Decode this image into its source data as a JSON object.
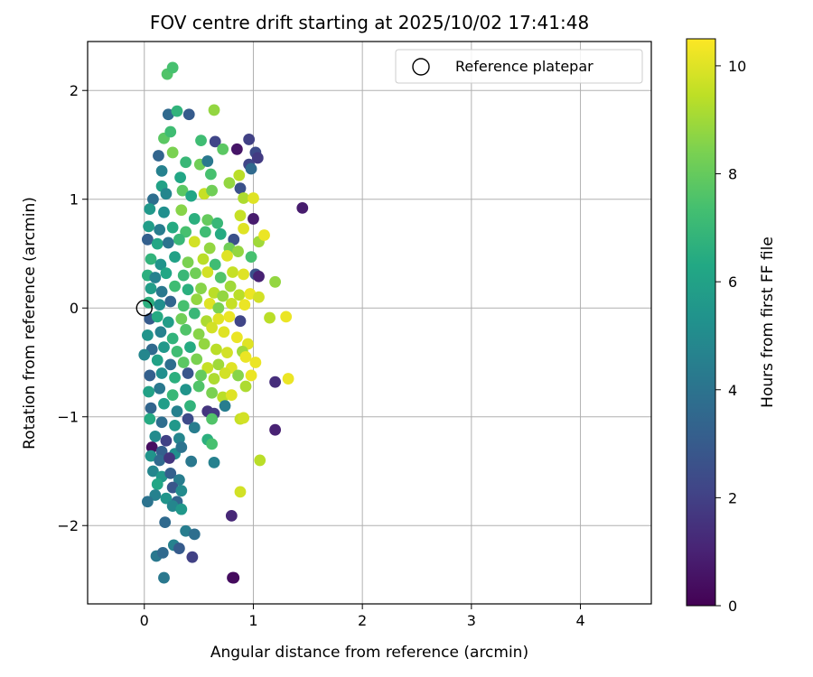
{
  "chart_data": {
    "type": "scatter",
    "title": "FOV centre drift starting at 2025/10/02 17:41:48",
    "xlabel": "Angular distance from reference (arcmin)",
    "ylabel": "Rotation from reference (arcmin)",
    "xlim": [
      -0.52,
      4.65
    ],
    "ylim": [
      -2.72,
      2.45
    ],
    "x_ticks": [
      0,
      1,
      2,
      3,
      4
    ],
    "y_ticks": [
      -2,
      -1,
      0,
      1,
      2
    ],
    "grid": true,
    "legend": {
      "position": "top-right",
      "label": "Reference platepar"
    },
    "reference_point": {
      "x": 0.0,
      "y": 0.0
    },
    "colorbar": {
      "label": "Hours from first FF file",
      "min": 0,
      "max": 10.5,
      "ticks": [
        0,
        2,
        4,
        6,
        8,
        10
      ],
      "colormap": "viridis"
    },
    "points": [
      {
        "x": 0.21,
        "y": 2.15,
        "h": 7.6
      },
      {
        "x": 0.26,
        "y": 2.21,
        "h": 7.4
      },
      {
        "x": 0.22,
        "y": 1.78,
        "h": 3.6
      },
      {
        "x": 0.3,
        "y": 1.81,
        "h": 6.8
      },
      {
        "x": 0.41,
        "y": 1.78,
        "h": 3.0
      },
      {
        "x": 0.64,
        "y": 1.82,
        "h": 8.8
      },
      {
        "x": 0.18,
        "y": 1.56,
        "h": 7.8
      },
      {
        "x": 0.24,
        "y": 1.62,
        "h": 7.2
      },
      {
        "x": 0.52,
        "y": 1.54,
        "h": 7.2
      },
      {
        "x": 0.65,
        "y": 1.53,
        "h": 2.2
      },
      {
        "x": 0.85,
        "y": 1.46,
        "h": 0.6
      },
      {
        "x": 0.96,
        "y": 1.55,
        "h": 2.0
      },
      {
        "x": 1.02,
        "y": 1.43,
        "h": 2.4
      },
      {
        "x": 1.04,
        "y": 1.38,
        "h": 1.8
      },
      {
        "x": 0.72,
        "y": 1.46,
        "h": 7.8
      },
      {
        "x": 0.13,
        "y": 1.4,
        "h": 3.4
      },
      {
        "x": 0.26,
        "y": 1.43,
        "h": 8.4
      },
      {
        "x": 0.38,
        "y": 1.34,
        "h": 7.0
      },
      {
        "x": 0.51,
        "y": 1.32,
        "h": 8.2
      },
      {
        "x": 0.58,
        "y": 1.35,
        "h": 4.2
      },
      {
        "x": 0.96,
        "y": 1.32,
        "h": 2.2
      },
      {
        "x": 0.98,
        "y": 1.28,
        "h": 3.6
      },
      {
        "x": 0.16,
        "y": 1.26,
        "h": 4.6
      },
      {
        "x": 0.33,
        "y": 1.2,
        "h": 6.2
      },
      {
        "x": 0.61,
        "y": 1.23,
        "h": 7.4
      },
      {
        "x": 0.78,
        "y": 1.15,
        "h": 8.8
      },
      {
        "x": 0.87,
        "y": 1.22,
        "h": 9.4
      },
      {
        "x": 0.88,
        "y": 1.1,
        "h": 2.6
      },
      {
        "x": 0.91,
        "y": 1.01,
        "h": 9.2
      },
      {
        "x": 1.0,
        "y": 1.01,
        "h": 10.0
      },
      {
        "x": 1.45,
        "y": 0.92,
        "h": 0.8
      },
      {
        "x": 0.08,
        "y": 1.0,
        "h": 3.8
      },
      {
        "x": 0.16,
        "y": 1.12,
        "h": 6.0
      },
      {
        "x": 0.2,
        "y": 1.05,
        "h": 4.8
      },
      {
        "x": 0.35,
        "y": 1.08,
        "h": 7.8
      },
      {
        "x": 0.43,
        "y": 1.03,
        "h": 6.2
      },
      {
        "x": 0.55,
        "y": 1.05,
        "h": 9.6
      },
      {
        "x": 0.62,
        "y": 1.08,
        "h": 8.2
      },
      {
        "x": 0.05,
        "y": 0.91,
        "h": 5.6
      },
      {
        "x": 0.18,
        "y": 0.88,
        "h": 5.2
      },
      {
        "x": 0.34,
        "y": 0.9,
        "h": 8.6
      },
      {
        "x": 0.46,
        "y": 0.82,
        "h": 6.6
      },
      {
        "x": 0.58,
        "y": 0.81,
        "h": 8.0
      },
      {
        "x": 0.67,
        "y": 0.78,
        "h": 7.0
      },
      {
        "x": 0.88,
        "y": 0.85,
        "h": 9.6
      },
      {
        "x": 1.0,
        "y": 0.82,
        "h": 0.8
      },
      {
        "x": 0.04,
        "y": 0.75,
        "h": 5.8
      },
      {
        "x": 0.14,
        "y": 0.72,
        "h": 4.4
      },
      {
        "x": 0.26,
        "y": 0.74,
        "h": 6.4
      },
      {
        "x": 0.38,
        "y": 0.7,
        "h": 7.4
      },
      {
        "x": 0.56,
        "y": 0.7,
        "h": 7.2
      },
      {
        "x": 0.7,
        "y": 0.68,
        "h": 6.4
      },
      {
        "x": 0.82,
        "y": 0.63,
        "h": 2.6
      },
      {
        "x": 0.91,
        "y": 0.73,
        "h": 10.0
      },
      {
        "x": 1.05,
        "y": 0.61,
        "h": 9.0
      },
      {
        "x": 1.1,
        "y": 0.67,
        "h": 10.2
      },
      {
        "x": 0.03,
        "y": 0.63,
        "h": 3.2
      },
      {
        "x": 0.12,
        "y": 0.59,
        "h": 6.2
      },
      {
        "x": 0.22,
        "y": 0.6,
        "h": 4.0
      },
      {
        "x": 0.32,
        "y": 0.63,
        "h": 7.0
      },
      {
        "x": 0.46,
        "y": 0.61,
        "h": 9.8
      },
      {
        "x": 0.6,
        "y": 0.55,
        "h": 8.8
      },
      {
        "x": 0.78,
        "y": 0.55,
        "h": 8.2
      },
      {
        "x": 0.86,
        "y": 0.52,
        "h": 8.8
      },
      {
        "x": 0.98,
        "y": 0.47,
        "h": 7.4
      },
      {
        "x": 0.06,
        "y": 0.45,
        "h": 6.8
      },
      {
        "x": 0.15,
        "y": 0.4,
        "h": 5.4
      },
      {
        "x": 0.28,
        "y": 0.47,
        "h": 6.0
      },
      {
        "x": 0.4,
        "y": 0.42,
        "h": 8.4
      },
      {
        "x": 0.54,
        "y": 0.45,
        "h": 9.4
      },
      {
        "x": 0.65,
        "y": 0.4,
        "h": 7.2
      },
      {
        "x": 0.76,
        "y": 0.48,
        "h": 10.0
      },
      {
        "x": 0.81,
        "y": 0.33,
        "h": 9.6
      },
      {
        "x": 0.91,
        "y": 0.31,
        "h": 10.0
      },
      {
        "x": 1.02,
        "y": 0.31,
        "h": 2.6
      },
      {
        "x": 1.05,
        "y": 0.29,
        "h": 1.0
      },
      {
        "x": 1.2,
        "y": 0.24,
        "h": 8.8
      },
      {
        "x": 0.03,
        "y": 0.3,
        "h": 6.6
      },
      {
        "x": 0.1,
        "y": 0.28,
        "h": 4.6
      },
      {
        "x": 0.2,
        "y": 0.32,
        "h": 6.2
      },
      {
        "x": 0.36,
        "y": 0.3,
        "h": 7.0
      },
      {
        "x": 0.47,
        "y": 0.32,
        "h": 8.2
      },
      {
        "x": 0.58,
        "y": 0.33,
        "h": 9.8
      },
      {
        "x": 0.7,
        "y": 0.28,
        "h": 7.6
      },
      {
        "x": 0.79,
        "y": 0.2,
        "h": 9.0
      },
      {
        "x": 0.06,
        "y": 0.18,
        "h": 5.8
      },
      {
        "x": 0.16,
        "y": 0.15,
        "h": 4.2
      },
      {
        "x": 0.28,
        "y": 0.2,
        "h": 7.2
      },
      {
        "x": 0.4,
        "y": 0.17,
        "h": 6.6
      },
      {
        "x": 0.52,
        "y": 0.18,
        "h": 8.6
      },
      {
        "x": 0.64,
        "y": 0.14,
        "h": 9.4
      },
      {
        "x": 0.72,
        "y": 0.11,
        "h": 8.8
      },
      {
        "x": 0.87,
        "y": 0.12,
        "h": 9.4
      },
      {
        "x": 0.97,
        "y": 0.13,
        "h": 10.2
      },
      {
        "x": 1.05,
        "y": 0.1,
        "h": 9.8
      },
      {
        "x": 0.04,
        "y": 0.05,
        "h": 6.6
      },
      {
        "x": 0.14,
        "y": 0.03,
        "h": 5.2
      },
      {
        "x": 0.24,
        "y": 0.06,
        "h": 3.4
      },
      {
        "x": 0.36,
        "y": 0.02,
        "h": 7.4
      },
      {
        "x": 0.48,
        "y": 0.08,
        "h": 8.8
      },
      {
        "x": 0.6,
        "y": 0.04,
        "h": 10.0
      },
      {
        "x": 0.68,
        "y": 0.0,
        "h": 8.4
      },
      {
        "x": 0.8,
        "y": 0.04,
        "h": 9.6
      },
      {
        "x": 0.92,
        "y": 0.03,
        "h": 10.2
      },
      {
        "x": 1.15,
        "y": -0.09,
        "h": 9.4
      },
      {
        "x": 1.3,
        "y": -0.08,
        "h": 10.2
      },
      {
        "x": 0.05,
        "y": -0.1,
        "h": 3.0
      },
      {
        "x": 0.12,
        "y": -0.08,
        "h": 6.4
      },
      {
        "x": 0.22,
        "y": -0.13,
        "h": 5.8
      },
      {
        "x": 0.34,
        "y": -0.1,
        "h": 8.2
      },
      {
        "x": 0.46,
        "y": -0.05,
        "h": 7.0
      },
      {
        "x": 0.57,
        "y": -0.12,
        "h": 9.2
      },
      {
        "x": 0.68,
        "y": -0.1,
        "h": 10.0
      },
      {
        "x": 0.78,
        "y": -0.08,
        "h": 10.2
      },
      {
        "x": 0.88,
        "y": -0.12,
        "h": 2.2
      },
      {
        "x": 0.03,
        "y": -0.25,
        "h": 5.4
      },
      {
        "x": 0.15,
        "y": -0.22,
        "h": 4.6
      },
      {
        "x": 0.26,
        "y": -0.28,
        "h": 6.8
      },
      {
        "x": 0.38,
        "y": -0.2,
        "h": 7.6
      },
      {
        "x": 0.5,
        "y": -0.24,
        "h": 8.6
      },
      {
        "x": 0.62,
        "y": -0.18,
        "h": 9.8
      },
      {
        "x": 0.73,
        "y": -0.22,
        "h": 10.0
      },
      {
        "x": 0.85,
        "y": -0.27,
        "h": 10.2
      },
      {
        "x": 0.95,
        "y": -0.33,
        "h": 10.0
      },
      {
        "x": 0.07,
        "y": -0.38,
        "h": 3.6
      },
      {
        "x": 0.18,
        "y": -0.36,
        "h": 5.6
      },
      {
        "x": 0.3,
        "y": -0.4,
        "h": 7.2
      },
      {
        "x": 0.42,
        "y": -0.36,
        "h": 6.4
      },
      {
        "x": 0.55,
        "y": -0.33,
        "h": 8.8
      },
      {
        "x": 0.66,
        "y": -0.38,
        "h": 9.4
      },
      {
        "x": 0.76,
        "y": -0.41,
        "h": 9.8
      },
      {
        "x": 0.9,
        "y": -0.4,
        "h": 9.0
      },
      {
        "x": 0.93,
        "y": -0.45,
        "h": 10.2
      },
      {
        "x": 1.02,
        "y": -0.5,
        "h": 10.2
      },
      {
        "x": 0.0,
        "y": -0.43,
        "h": 4.8
      },
      {
        "x": 0.12,
        "y": -0.48,
        "h": 6.0
      },
      {
        "x": 0.24,
        "y": -0.52,
        "h": 3.8
      },
      {
        "x": 0.36,
        "y": -0.5,
        "h": 7.8
      },
      {
        "x": 0.48,
        "y": -0.47,
        "h": 8.4
      },
      {
        "x": 0.58,
        "y": -0.55,
        "h": 9.6
      },
      {
        "x": 0.68,
        "y": -0.52,
        "h": 9.0
      },
      {
        "x": 0.8,
        "y": -0.55,
        "h": 10.0
      },
      {
        "x": 0.05,
        "y": -0.62,
        "h": 3.2
      },
      {
        "x": 0.16,
        "y": -0.6,
        "h": 5.2
      },
      {
        "x": 0.28,
        "y": -0.64,
        "h": 6.6
      },
      {
        "x": 0.4,
        "y": -0.6,
        "h": 2.8
      },
      {
        "x": 0.52,
        "y": -0.62,
        "h": 8.0
      },
      {
        "x": 0.64,
        "y": -0.65,
        "h": 9.2
      },
      {
        "x": 0.74,
        "y": -0.6,
        "h": 9.8
      },
      {
        "x": 0.86,
        "y": -0.62,
        "h": 8.6
      },
      {
        "x": 0.98,
        "y": -0.62,
        "h": 10.2
      },
      {
        "x": 1.2,
        "y": -0.68,
        "h": 1.4
      },
      {
        "x": 1.32,
        "y": -0.65,
        "h": 10.2
      },
      {
        "x": 0.04,
        "y": -0.77,
        "h": 6.0
      },
      {
        "x": 0.14,
        "y": -0.74,
        "h": 4.2
      },
      {
        "x": 0.26,
        "y": -0.8,
        "h": 7.0
      },
      {
        "x": 0.38,
        "y": -0.75,
        "h": 5.4
      },
      {
        "x": 0.5,
        "y": -0.72,
        "h": 7.6
      },
      {
        "x": 0.62,
        "y": -0.78,
        "h": 8.4
      },
      {
        "x": 0.72,
        "y": -0.82,
        "h": 9.4
      },
      {
        "x": 0.8,
        "y": -0.8,
        "h": 10.0
      },
      {
        "x": 0.93,
        "y": -0.72,
        "h": 9.2
      },
      {
        "x": 0.06,
        "y": -0.92,
        "h": 3.4
      },
      {
        "x": 0.18,
        "y": -0.88,
        "h": 5.8
      },
      {
        "x": 0.3,
        "y": -0.95,
        "h": 4.6
      },
      {
        "x": 0.42,
        "y": -0.9,
        "h": 6.8
      },
      {
        "x": 0.58,
        "y": -0.95,
        "h": 1.6
      },
      {
        "x": 0.64,
        "y": -0.97,
        "h": 1.8
      },
      {
        "x": 0.74,
        "y": -0.9,
        "h": 4.4
      },
      {
        "x": 0.88,
        "y": -1.02,
        "h": 9.6
      },
      {
        "x": 0.91,
        "y": -1.01,
        "h": 9.8
      },
      {
        "x": 0.05,
        "y": -1.02,
        "h": 6.4
      },
      {
        "x": 0.16,
        "y": -1.05,
        "h": 3.8
      },
      {
        "x": 0.28,
        "y": -1.08,
        "h": 5.6
      },
      {
        "x": 0.4,
        "y": -1.02,
        "h": 2.4
      },
      {
        "x": 0.46,
        "y": -1.1,
        "h": 4.4
      },
      {
        "x": 0.62,
        "y": -1.02,
        "h": 7.6
      },
      {
        "x": 1.2,
        "y": -1.12,
        "h": 1.0
      },
      {
        "x": 0.1,
        "y": -1.18,
        "h": 5.0
      },
      {
        "x": 0.2,
        "y": -1.22,
        "h": 2.0
      },
      {
        "x": 0.32,
        "y": -1.2,
        "h": 4.8
      },
      {
        "x": 0.58,
        "y": -1.21,
        "h": 6.6
      },
      {
        "x": 0.62,
        "y": -1.25,
        "h": 7.4
      },
      {
        "x": 0.07,
        "y": -1.28,
        "h": 0.4
      },
      {
        "x": 0.16,
        "y": -1.32,
        "h": 3.2
      },
      {
        "x": 0.28,
        "y": -1.34,
        "h": 5.2
      },
      {
        "x": 0.34,
        "y": -1.28,
        "h": 4.0
      },
      {
        "x": 0.06,
        "y": -1.36,
        "h": 5.4
      },
      {
        "x": 0.14,
        "y": -1.4,
        "h": 3.6
      },
      {
        "x": 0.23,
        "y": -1.38,
        "h": 1.6
      },
      {
        "x": 0.43,
        "y": -1.41,
        "h": 4.2
      },
      {
        "x": 0.64,
        "y": -1.42,
        "h": 4.6
      },
      {
        "x": 1.06,
        "y": -1.4,
        "h": 9.4
      },
      {
        "x": 0.08,
        "y": -1.5,
        "h": 4.8
      },
      {
        "x": 0.16,
        "y": -1.55,
        "h": 5.6
      },
      {
        "x": 0.24,
        "y": -1.52,
        "h": 3.2
      },
      {
        "x": 0.32,
        "y": -1.58,
        "h": 4.4
      },
      {
        "x": 0.12,
        "y": -1.62,
        "h": 6.2
      },
      {
        "x": 0.26,
        "y": -1.65,
        "h": 2.8
      },
      {
        "x": 0.34,
        "y": -1.68,
        "h": 5.0
      },
      {
        "x": 0.1,
        "y": -1.72,
        "h": 4.6
      },
      {
        "x": 0.2,
        "y": -1.75,
        "h": 5.4
      },
      {
        "x": 0.3,
        "y": -1.78,
        "h": 3.4
      },
      {
        "x": 0.03,
        "y": -1.78,
        "h": 4.0
      },
      {
        "x": 0.26,
        "y": -1.82,
        "h": 4.8
      },
      {
        "x": 0.34,
        "y": -1.85,
        "h": 5.6
      },
      {
        "x": 0.88,
        "y": -1.69,
        "h": 9.8
      },
      {
        "x": 0.8,
        "y": -1.91,
        "h": 1.2
      },
      {
        "x": 0.19,
        "y": -1.97,
        "h": 3.6
      },
      {
        "x": 0.38,
        "y": -2.05,
        "h": 4.4
      },
      {
        "x": 0.46,
        "y": -2.08,
        "h": 3.8
      },
      {
        "x": 0.27,
        "y": -2.18,
        "h": 4.6
      },
      {
        "x": 0.32,
        "y": -2.21,
        "h": 3.0
      },
      {
        "x": 0.11,
        "y": -2.28,
        "h": 4.2
      },
      {
        "x": 0.17,
        "y": -2.25,
        "h": 3.6
      },
      {
        "x": 0.44,
        "y": -2.29,
        "h": 2.0
      },
      {
        "x": 0.18,
        "y": -2.48,
        "h": 4.2
      },
      {
        "x": 0.81,
        "y": -2.48,
        "h": 0.5
      },
      {
        "x": 0.82,
        "y": -2.48,
        "h": 0.3
      }
    ]
  }
}
